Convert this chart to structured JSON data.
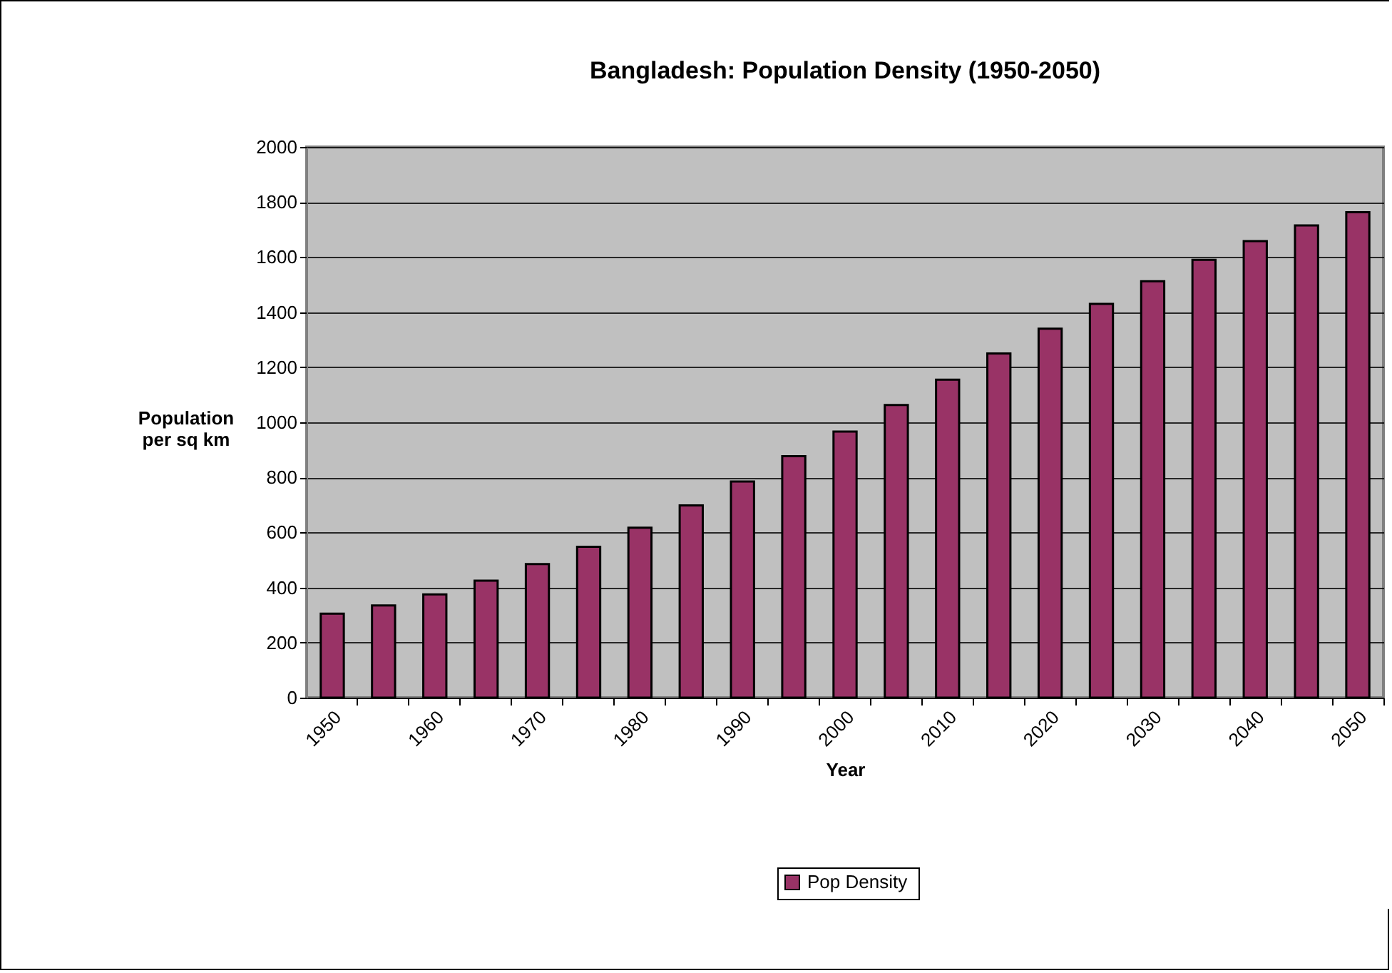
{
  "chart_data": {
    "type": "bar",
    "title": "Bangladesh: Population Density (1950-2050)",
    "xlabel": "Year",
    "ylabel": "Population per sq km",
    "categories": [
      "1950",
      null,
      "1960",
      null,
      "1970",
      null,
      "1980",
      null,
      "1990",
      null,
      "2000",
      null,
      "2010",
      null,
      "2020",
      null,
      "2030",
      null,
      "2040",
      null,
      "2050"
    ],
    "series": [
      {
        "name": "Pop  Density",
        "color": "#993366",
        "values": [
          305,
          335,
          375,
          425,
          485,
          548,
          617,
          698,
          785,
          877,
          966,
          1063,
          1155,
          1250,
          1340,
          1430,
          1512,
          1590,
          1658,
          1715,
          1763
        ]
      }
    ],
    "ylim": [
      0,
      2000
    ],
    "yticks": [
      0,
      200,
      400,
      600,
      800,
      1000,
      1200,
      1400,
      1600,
      1800,
      2000
    ],
    "grid": "y",
    "legend": "bottom"
  }
}
